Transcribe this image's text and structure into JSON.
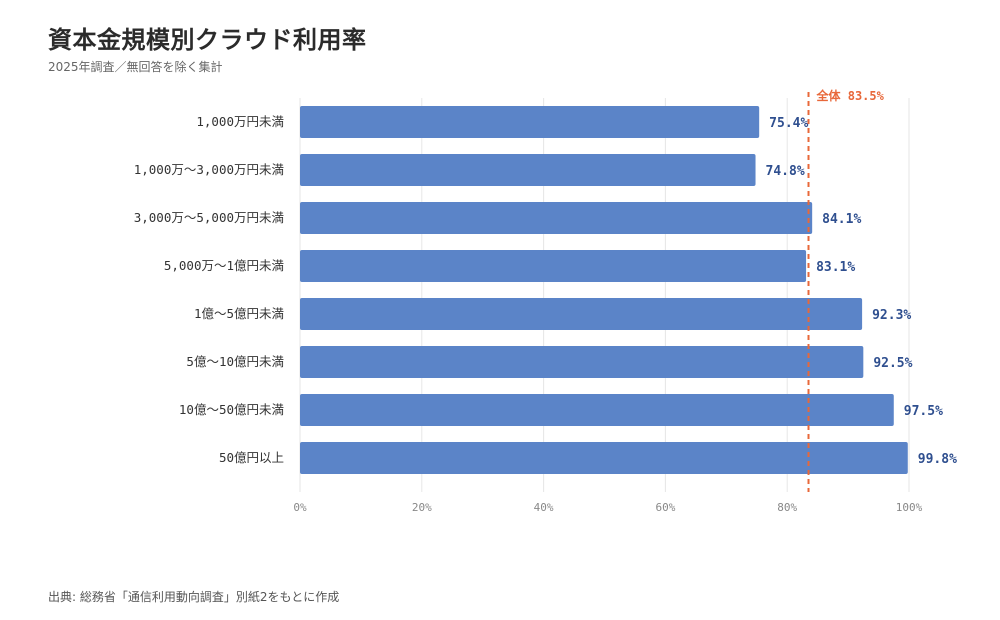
{
  "title": "資本金規模別クラウド利用率",
  "subtitle": "2025年調査／無回答を除く集計",
  "source": "出典: 総務省「通信利用動向調査」別紙2をもとに作成",
  "colors": {
    "bar": "#5b84c8",
    "value_label": "#2f4f8f",
    "reference": "#e8683a",
    "grid": "#e6e6e6"
  },
  "chart_data": {
    "type": "bar",
    "orientation": "horizontal",
    "categories": [
      "1,000万円未満",
      "1,000万～3,000万円未満",
      "3,000万～5,000万円未満",
      "5,000万～1億円未満",
      "1億～5億円未満",
      "5億～10億円未満",
      "10億～50億円未満",
      "50億円以上"
    ],
    "values": [
      75.4,
      74.8,
      84.1,
      83.1,
      92.3,
      92.5,
      97.5,
      99.8
    ],
    "value_labels": [
      "75.4%",
      "74.8%",
      "84.1%",
      "83.1%",
      "92.3%",
      "92.5%",
      "97.5%",
      "99.8%"
    ],
    "xlim": [
      0,
      100
    ],
    "x_ticks": [
      0,
      20,
      40,
      60,
      80,
      100
    ],
    "x_tick_labels": [
      "0%",
      "20%",
      "40%",
      "60%",
      "80%",
      "100%"
    ],
    "grid": true,
    "reference_line": {
      "value": 83.5,
      "label": "全体 83.5%"
    }
  }
}
